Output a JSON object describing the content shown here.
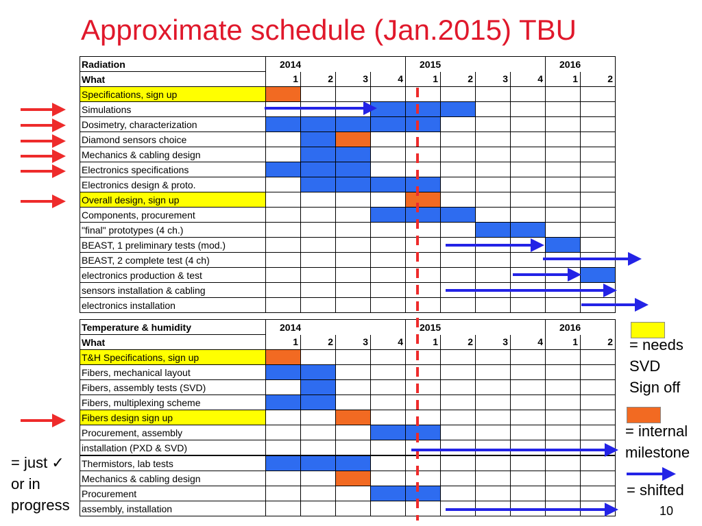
{
  "title": "Approximate schedule (Jan.2015) TBU",
  "colors": {
    "title": "#e0182b",
    "highlight": "#ffff00",
    "done": "#2e6cf0",
    "milestone": "#f26a22",
    "red_arrow": "#ee2b2b",
    "blue_arrow": "#2323e6"
  },
  "radiation": {
    "section_label": "Radiation",
    "what_label": "What",
    "years": [
      "2014",
      "2015",
      "2016"
    ],
    "quarters": [
      "1",
      "2",
      "3",
      "4",
      "1",
      "2",
      "3",
      "4",
      "1",
      "2"
    ],
    "rows": [
      {
        "label": "Specifications, sign up",
        "highlight": true,
        "cells": "o........."
      },
      {
        "label": "Simulations",
        "highlight": false,
        "cells": "...bbb...."
      },
      {
        "label": "Dosimetry, characterization",
        "highlight": false,
        "cells": "bbbbb....."
      },
      {
        "label": "Diamond sensors choice",
        "highlight": false,
        "cells": ".bo......."
      },
      {
        "label": "Mechanics & cabling design",
        "highlight": false,
        "cells": ".bb......."
      },
      {
        "label": "Electronics specifications",
        "highlight": false,
        "cells": "bbb......."
      },
      {
        "label": "Electronics design & proto.",
        "highlight": false,
        "cells": ".bbbb....."
      },
      {
        "label": "Overall design, sign up",
        "highlight": true,
        "cells": "....o....."
      },
      {
        "label": "Components, procurement",
        "highlight": false,
        "cells": "...bbb...."
      },
      {
        "label": "\"final\" prototypes (4 ch.)",
        "highlight": false,
        "cells": "......bb.."
      },
      {
        "label": "BEAST, 1 preliminary tests (mod.)",
        "highlight": false,
        "cells": "........b."
      },
      {
        "label": "BEAST, 2 complete test (4 ch)",
        "highlight": false,
        "cells": ".........."
      },
      {
        "label": "electronics production & test",
        "highlight": false,
        "cells": ".........b"
      },
      {
        "label": "sensors installation & cabling",
        "highlight": false,
        "cells": ".........."
      },
      {
        "label": "electronics installation",
        "highlight": false,
        "cells": ".........."
      }
    ]
  },
  "temperature": {
    "section_label": "Temperature & humidity",
    "what_label": "What",
    "years": [
      "2014",
      "2015",
      "2016"
    ],
    "quarters": [
      "1",
      "2",
      "3",
      "4",
      "1",
      "2",
      "3",
      "4",
      "1",
      "2"
    ],
    "rows": [
      {
        "label": "T&H Specifications, sign up",
        "highlight": true,
        "cells": "o.........",
        "sep": false
      },
      {
        "label": "Fibers, mechanical layout",
        "highlight": false,
        "cells": "bb........",
        "sep": false
      },
      {
        "label": "Fibers, assembly tests (SVD)",
        "highlight": false,
        "cells": ".b........",
        "sep": false
      },
      {
        "label": "Fibers, multiplexing scheme",
        "highlight": false,
        "cells": "bb........",
        "sep": false
      },
      {
        "label": "Fibers design sign up",
        "highlight": true,
        "cells": "..o.......",
        "sep": false
      },
      {
        "label": "Procurement, assembly",
        "highlight": false,
        "cells": "...bb.....",
        "sep": false
      },
      {
        "label": "installation (PXD & SVD)",
        "highlight": false,
        "cells": "..........",
        "sep": false
      },
      {
        "label": "Thermistors, lab tests",
        "highlight": false,
        "cells": "bbb.......",
        "sep": true
      },
      {
        "label": "Mechanics & cabling design",
        "highlight": false,
        "cells": "..o.......",
        "sep": false
      },
      {
        "label": "Procurement",
        "highlight": false,
        "cells": "...bb.....",
        "sep": false
      },
      {
        "label": "assembly, installation",
        "highlight": false,
        "cells": "..........",
        "sep": false
      }
    ]
  },
  "legend": {
    "needs_svd": "= needs\nSVD\nSign off",
    "internal_milestone": "= internal\nmilestone",
    "shifted": "= shifted",
    "just_done": "= just ✓\nor in\nprogress"
  },
  "page_number": "10"
}
